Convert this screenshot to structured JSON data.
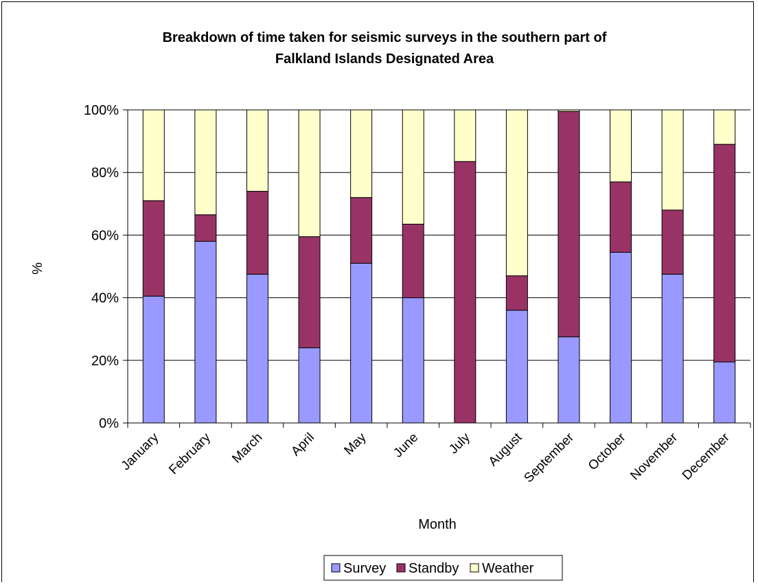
{
  "chart_data": {
    "type": "bar",
    "stacked": true,
    "percent_stacked": true,
    "title": "Breakdown of time taken for seismic surveys in the southern part of Falkland Islands Designated Area",
    "title_lines": [
      "Breakdown of time taken for seismic surveys in the southern part of",
      "Falkland Islands Designated Area"
    ],
    "xlabel": "Month",
    "ylabel": "%",
    "ylim": [
      0,
      100
    ],
    "yticks": [
      "0%",
      "20%",
      "40%",
      "60%",
      "80%",
      "100%"
    ],
    "grid": true,
    "legend_position": "bottom",
    "categories": [
      "January",
      "February",
      "March",
      "April",
      "May",
      "June",
      "July",
      "August",
      "September",
      "October",
      "November",
      "December"
    ],
    "series": [
      {
        "name": "Survey",
        "color": "#9999ff",
        "values": [
          40.5,
          58,
          47.5,
          24,
          51,
          40,
          0,
          36,
          27.5,
          54.5,
          47.5,
          19.5
        ]
      },
      {
        "name": "Standby",
        "color": "#993366",
        "values": [
          30.5,
          8.5,
          26.5,
          35.5,
          21,
          23.5,
          83.5,
          11,
          72,
          22.5,
          20.5,
          69.5
        ]
      },
      {
        "name": "Weather",
        "color": "#ffffcc",
        "values": [
          29,
          33.5,
          26,
          40.5,
          28,
          36.5,
          16.5,
          53,
          0.5,
          23,
          32,
          11
        ]
      }
    ]
  }
}
